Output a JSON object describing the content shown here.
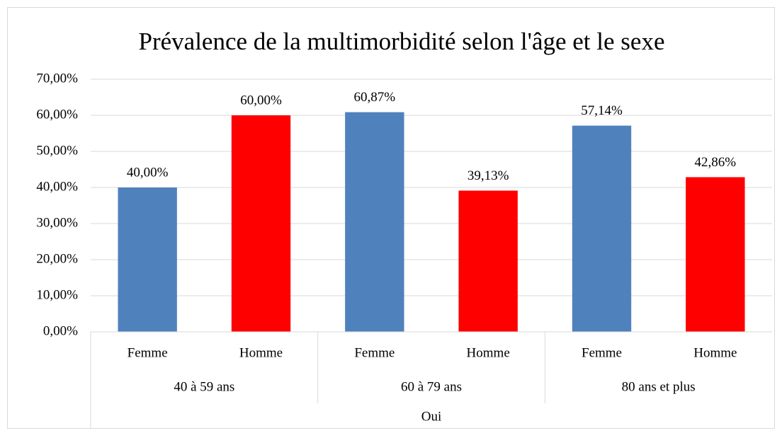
{
  "chart_data": {
    "type": "bar",
    "title": "Prévalence de la multimorbidité selon l'âge et le sexe",
    "categories": [
      "Femme",
      "Homme",
      "Femme",
      "Homme",
      "Femme",
      "Homme"
    ],
    "groups": [
      "40 à 59 ans",
      "60 à 79 ans",
      "80 ans et plus"
    ],
    "top_group": "Oui",
    "values": [
      40,
      60,
      60.87,
      39.13,
      57.14,
      42.86
    ],
    "value_labels": [
      "40,00%",
      "60,00%",
      "60,87%",
      "39,13%",
      "57,14%",
      "42,86%"
    ],
    "colors": [
      "#4f81bd",
      "#ff0000",
      "#4f81bd",
      "#ff0000",
      "#4f81bd",
      "#ff0000"
    ],
    "ylim": [
      0,
      70
    ],
    "yticks": [
      {
        "value": 0,
        "label": "0,00%"
      },
      {
        "value": 10,
        "label": "10,00%"
      },
      {
        "value": 20,
        "label": "20,00%"
      },
      {
        "value": 30,
        "label": "30,00%"
      },
      {
        "value": 40,
        "label": "40,00%"
      },
      {
        "value": 50,
        "label": "50,00%"
      },
      {
        "value": 60,
        "label": "60,00%"
      },
      {
        "value": 70,
        "label": "70,00%"
      }
    ],
    "grid": true
  }
}
